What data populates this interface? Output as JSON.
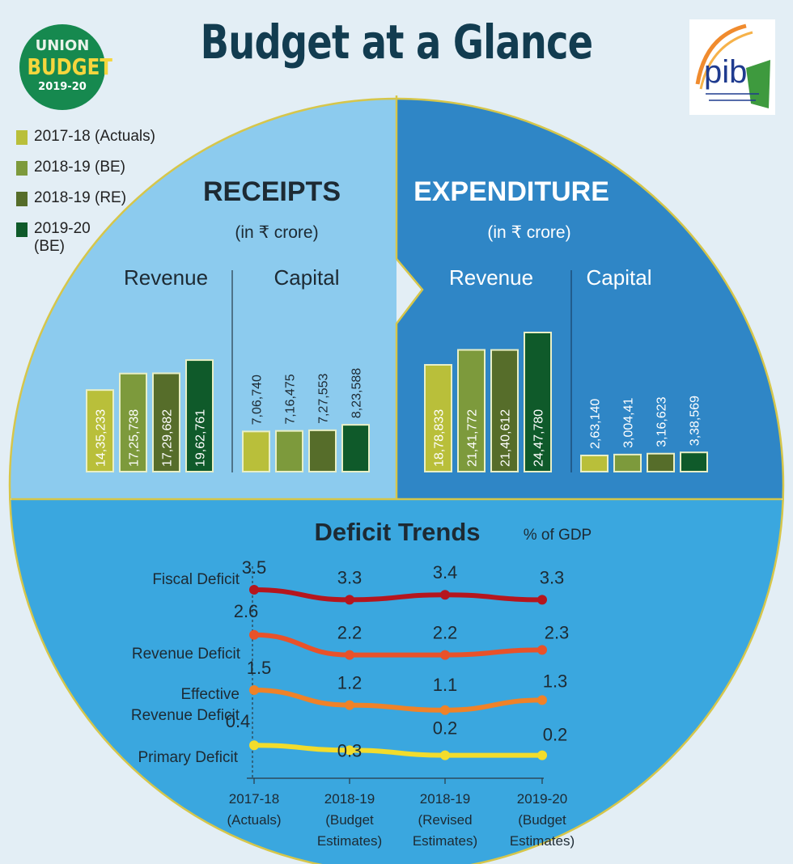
{
  "header": {
    "title": "Budget at a Glance"
  },
  "logo": {
    "line1": "UNION",
    "line2": "BUDGET",
    "line3": "2019-20",
    "pib_text": "pib"
  },
  "legend": [
    {
      "label": "2017-18 (Actuals)",
      "color": "#b9bf3a"
    },
    {
      "label": "2018-19 (BE)",
      "color": "#7d9a3c"
    },
    {
      "label": "2018-19 (RE)",
      "color": "#566d2a"
    },
    {
      "label": "2019-20 (BE)",
      "color": "#0f5a2a"
    }
  ],
  "receipts": {
    "title": "RECEIPTS",
    "unit": "(in ₹ crore)",
    "revenue_label": "Revenue",
    "capital_label": "Capital"
  },
  "expenditure": {
    "title": "EXPENDITURE",
    "unit": "(in ₹ crore)",
    "revenue_label": "Revenue",
    "capital_label": "Capital"
  },
  "deficit": {
    "title": "Deficit Trends",
    "unit": "% of GDP"
  },
  "chart_data": [
    {
      "type": "bar",
      "title": "RECEIPTS",
      "categories": [
        "Revenue",
        "Capital"
      ],
      "series": [
        {
          "name": "2017-18 (Actuals)",
          "values": [
            1435233,
            706740
          ],
          "labels": [
            "14,35,233",
            "7,06,740"
          ]
        },
        {
          "name": "2018-19 (BE)",
          "values": [
            1725738,
            716475
          ],
          "labels": [
            "17,25,738",
            "7,16,475"
          ]
        },
        {
          "name": "2018-19 (RE)",
          "values": [
            1729682,
            727553
          ],
          "labels": [
            "17,29,682",
            "7,27,553"
          ]
        },
        {
          "name": "2019-20 (BE)",
          "values": [
            1962761,
            823588
          ],
          "labels": [
            "19,62,761",
            "8,23,588"
          ]
        }
      ]
    },
    {
      "type": "bar",
      "title": "EXPENDITURE",
      "categories": [
        "Revenue",
        "Capital"
      ],
      "series": [
        {
          "name": "2017-18 (Actuals)",
          "values": [
            1878833,
            263140
          ],
          "labels": [
            "18,78,833",
            "2,63,140"
          ]
        },
        {
          "name": "2018-19 (BE)",
          "values": [
            2141772,
            300441
          ],
          "labels": [
            "21,41,772",
            "3,004,41"
          ]
        },
        {
          "name": "2018-19 (RE)",
          "values": [
            2140612,
            316623
          ],
          "labels": [
            "21,40,612",
            "3,16,623"
          ]
        },
        {
          "name": "2019-20 (BE)",
          "values": [
            2447780,
            338569
          ],
          "labels": [
            "24,47,780",
            "3,38,569"
          ]
        }
      ]
    },
    {
      "type": "line",
      "title": "Deficit Trends",
      "ylabel": "% of GDP",
      "x": [
        "2017-18 (Actuals)",
        "2018-19 (Budget Estimates)",
        "2018-19 (Revised Estimates)",
        "2019-20 (Budget Estimates)"
      ],
      "x_label_lines": [
        [
          "2017-18",
          "(Actuals)"
        ],
        [
          "2018-19",
          "(Budget",
          "Estimates)"
        ],
        [
          "2018-19",
          "(Revised",
          "Estimates)"
        ],
        [
          "2019-20",
          "(Budget",
          "Estimates)"
        ]
      ],
      "series": [
        {
          "name": "Fiscal Deficit",
          "label_lines": [
            "Fiscal Deficit"
          ],
          "values": [
            3.5,
            3.3,
            3.4,
            3.3
          ],
          "color": "#b5161e"
        },
        {
          "name": "Revenue Deficit",
          "label_lines": [
            "Revenue Deficit"
          ],
          "values": [
            2.6,
            2.2,
            2.2,
            2.3
          ],
          "color": "#e8522a"
        },
        {
          "name": "Effective Revenue Deficit",
          "label_lines": [
            "Effective",
            "Revenue Deficit"
          ],
          "values": [
            1.5,
            1.2,
            1.1,
            1.3
          ],
          "color": "#ef8228"
        },
        {
          "name": "Primary Deficit",
          "label_lines": [
            "Primary Deficit"
          ],
          "values": [
            0.4,
            0.3,
            0.2,
            0.2
          ],
          "color": "#f2dc2c"
        }
      ]
    }
  ]
}
